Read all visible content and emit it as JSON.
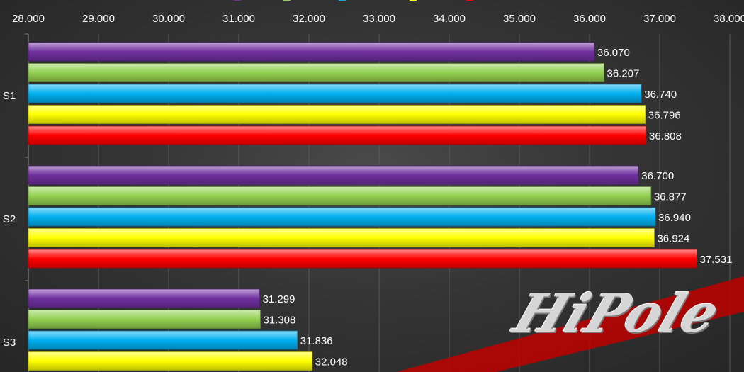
{
  "chart_data": {
    "type": "bar",
    "orientation": "horizontal",
    "categories": [
      "S1",
      "S2",
      "S3"
    ],
    "series": [
      {
        "name": "",
        "color": "#7030a0",
        "values": [
          36.07,
          36.7,
          31.299
        ]
      },
      {
        "name": "",
        "color": "#92d050",
        "values": [
          36.207,
          36.877,
          31.308
        ]
      },
      {
        "name": "",
        "color": "#00b0f0",
        "values": [
          36.74,
          36.94,
          31.836
        ]
      },
      {
        "name": "",
        "color": "#ffff00",
        "values": [
          36.796,
          36.924,
          32.048
        ]
      },
      {
        "name": "",
        "color": "#ff0000",
        "values": [
          36.808,
          37.531,
          null
        ]
      }
    ],
    "value_labels": [
      [
        "36.070",
        "36.207",
        "36.740",
        "36.796",
        "36.808"
      ],
      [
        "36.700",
        "36.877",
        "36.940",
        "36.924",
        "37.531"
      ],
      [
        "31.299",
        "31.308",
        "31.836",
        "32.048",
        ""
      ]
    ],
    "xlim": [
      28,
      38
    ],
    "xticks": [
      "28.000",
      "29.000",
      "30.000",
      "31.000",
      "32.000",
      "33.000",
      "34.000",
      "35.000",
      "36.000",
      "37.000",
      "38.000"
    ],
    "legend_position": "top",
    "grid": "vertical",
    "title": "",
    "xlabel": "",
    "ylabel": ""
  },
  "watermark": {
    "text": "HiPole"
  }
}
